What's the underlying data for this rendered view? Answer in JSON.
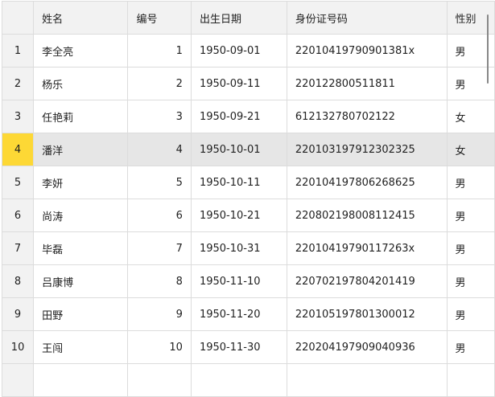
{
  "columns": [
    "",
    "姓名",
    "编号",
    "出生日期",
    "身份证号码",
    "性别"
  ],
  "selected_row": 4,
  "rows": [
    {
      "idx": "1",
      "name": "李全亮",
      "no": "1",
      "birth": "1950-09-01",
      "id": "22010419790901381x",
      "gender": "男"
    },
    {
      "idx": "2",
      "name": "杨乐",
      "no": "2",
      "birth": "1950-09-11",
      "id": "220122800511811",
      "gender": "男"
    },
    {
      "idx": "3",
      "name": "任艳莉",
      "no": "3",
      "birth": "1950-09-21",
      "id": "612132780702122",
      "gender": "女"
    },
    {
      "idx": "4",
      "name": "潘洋",
      "no": "4",
      "birth": "1950-10-01",
      "id": "220103197912302325",
      "gender": "女"
    },
    {
      "idx": "5",
      "name": "李妍",
      "no": "5",
      "birth": "1950-10-11",
      "id": "220104197806268625",
      "gender": "男"
    },
    {
      "idx": "6",
      "name": "尚涛",
      "no": "6",
      "birth": "1950-10-21",
      "id": "220802198008112415",
      "gender": "男"
    },
    {
      "idx": "7",
      "name": "毕磊",
      "no": "7",
      "birth": "1950-10-31",
      "id": "22010419790117263x",
      "gender": "男"
    },
    {
      "idx": "8",
      "name": "吕康博",
      "no": "8",
      "birth": "1950-11-10",
      "id": "220702197804201419",
      "gender": "男"
    },
    {
      "idx": "9",
      "name": "田野",
      "no": "9",
      "birth": "1950-11-20",
      "id": "220105197801300012",
      "gender": "男"
    },
    {
      "idx": "10",
      "name": "王闯",
      "no": "10",
      "birth": "1950-11-30",
      "id": "220204197909040936",
      "gender": "男"
    }
  ],
  "colors": {
    "selected_header": "#fdd835",
    "selected_row": "#e6e6e6",
    "header": "#f2f2f2"
  }
}
